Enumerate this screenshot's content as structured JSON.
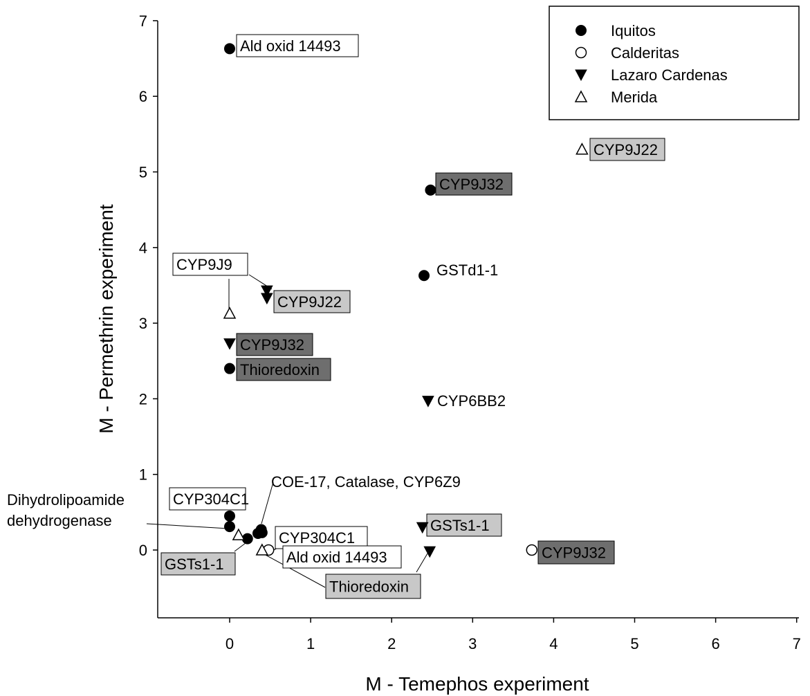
{
  "chart_data": {
    "type": "scatter",
    "xlabel": "M - Temephos experiment",
    "ylabel": "M - Permethrin experiment",
    "xlim": [
      -0.9,
      7
    ],
    "ylim": [
      -0.9,
      7
    ],
    "x_ticks": [
      0,
      1,
      2,
      3,
      4,
      5,
      6,
      7
    ],
    "y_ticks": [
      0,
      1,
      2,
      3,
      4,
      5,
      6,
      7
    ],
    "grid": false,
    "legend_position": "top-right",
    "legend": [
      {
        "name": "Iquitos",
        "marker": "filled-circle"
      },
      {
        "name": "Calderitas",
        "marker": "open-circle"
      },
      {
        "name": "Lazaro Cardenas",
        "marker": "filled-triangle-down"
      },
      {
        "name": "Merida",
        "marker": "open-triangle-up"
      }
    ],
    "series": [
      {
        "name": "Iquitos",
        "marker": "filled-circle",
        "points": [
          {
            "x": 0.0,
            "y": 6.63
          },
          {
            "x": 2.48,
            "y": 4.76
          },
          {
            "x": 2.4,
            "y": 3.63
          },
          {
            "x": 0.0,
            "y": 2.4
          },
          {
            "x": 0.0,
            "y": 0.45
          },
          {
            "x": 0.0,
            "y": 0.31
          },
          {
            "x": 0.22,
            "y": 0.15
          },
          {
            "x": 0.35,
            "y": 0.22
          },
          {
            "x": 0.39,
            "y": 0.27
          },
          {
            "x": 0.4,
            "y": 0.23
          }
        ]
      },
      {
        "name": "Calderitas",
        "marker": "open-circle",
        "points": [
          {
            "x": 3.73,
            "y": 0.0
          },
          {
            "x": 0.48,
            "y": 0.0
          }
        ]
      },
      {
        "name": "Lazaro Cardenas",
        "marker": "filled-triangle-down",
        "points": [
          {
            "x": 0.46,
            "y": 3.43
          },
          {
            "x": 0.46,
            "y": 3.33
          },
          {
            "x": 0.0,
            "y": 2.73
          },
          {
            "x": 2.45,
            "y": 1.97
          },
          {
            "x": 2.38,
            "y": 0.3
          },
          {
            "x": 2.47,
            "y": -0.02
          }
        ]
      },
      {
        "name": "Merida",
        "marker": "open-triangle-up",
        "points": [
          {
            "x": 4.35,
            "y": 5.3
          },
          {
            "x": 0.0,
            "y": 3.13
          },
          {
            "x": 0.11,
            "y": 0.2
          },
          {
            "x": 0.4,
            "y": 0.0
          }
        ]
      }
    ],
    "annotations": [
      {
        "text": "Ald oxid 14493",
        "box": "white"
      },
      {
        "text": "CYP9J22",
        "box": "light-gray"
      },
      {
        "text": "CYP9J32",
        "box": "dark-gray"
      },
      {
        "text": "GSTd1-1",
        "box": "none"
      },
      {
        "text": "CYP9J9",
        "box": "white"
      },
      {
        "text": "CYP9J22",
        "box": "light-gray"
      },
      {
        "text": "CYP9J32",
        "box": "dark-gray"
      },
      {
        "text": "Thioredoxin",
        "box": "dark-gray"
      },
      {
        "text": "CYP6BB2",
        "box": "none"
      },
      {
        "text": "COE-17, Catalase, CYP6Z9",
        "box": "none"
      },
      {
        "text": "CYP304C1",
        "box": "white"
      },
      {
        "text": "Dihydrolipoamide",
        "box": "none"
      },
      {
        "text": "dehydrogenase",
        "box": "none"
      },
      {
        "text": "CYP304C1",
        "box": "white"
      },
      {
        "text": "GSTs1-1",
        "box": "light-gray"
      },
      {
        "text": "Ald oxid 14493",
        "box": "white"
      },
      {
        "text": "Thioredoxin",
        "box": "light-gray"
      },
      {
        "text": "GSTs1-1",
        "box": "light-gray"
      },
      {
        "text": "CYP9J32",
        "box": "dark-gray"
      }
    ],
    "box_colors": {
      "white": "#ffffff",
      "light-gray": "#c8c8c8",
      "dark-gray": "#6e6e6e",
      "none": "none"
    }
  }
}
